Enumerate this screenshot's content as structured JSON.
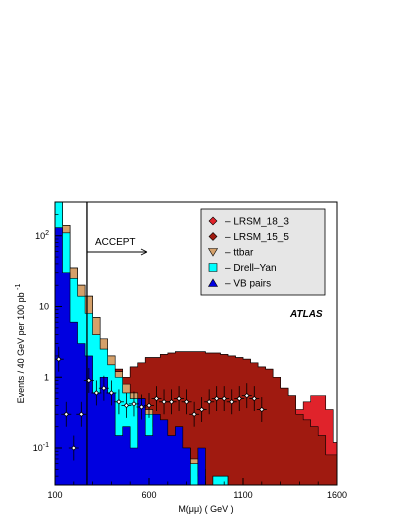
{
  "chart_data": {
    "type": "area",
    "xlabel": "M(μμ) ( GeV )",
    "ylabel": "Events / 40 GeV per 100 pb",
    "ylabel_superscript": "-1",
    "xlim": [
      100,
      1600
    ],
    "ylim": [
      0.03,
      300
    ],
    "yscale": "log",
    "x_ticks": [
      100,
      600,
      1100,
      1600
    ],
    "y_ticks": [
      {
        "value": 0.1,
        "base": "10",
        "exp": "-1"
      },
      {
        "value": 1,
        "base": "1",
        "exp": ""
      },
      {
        "value": 10,
        "base": "10",
        "exp": ""
      },
      {
        "value": 100,
        "base": "10",
        "exp": "2"
      }
    ],
    "bin_width": 40,
    "bin_edges_start": 100,
    "cut_line": {
      "x": 270,
      "label": "ACCEPT"
    },
    "experiment_label": "ATLAS",
    "legend": [
      {
        "label": "– LRSM_18_3",
        "marker": "diamond",
        "color": "#e0232b"
      },
      {
        "label": "– LRSM_15_5",
        "marker": "diamond",
        "color": "#a01a10"
      },
      {
        "label": "– ttbar",
        "marker": "triangle-down",
        "color": "#d4a06a"
      },
      {
        "label": "– Drell–Yan",
        "marker": "square",
        "color": "#00ffff"
      },
      {
        "label": "– VB pairs",
        "marker": "triangle-up",
        "color": "#0000e0"
      }
    ],
    "series": [
      {
        "name": "VB pairs",
        "color": "#0000e0",
        "values": [
          130,
          30,
          6,
          3,
          2,
          0.6,
          1,
          0.6,
          0.15,
          0.2,
          0.1,
          0.5,
          0.15,
          0.3,
          0.25,
          0.15,
          0.2,
          0.1,
          0.03,
          0.1,
          0.03,
          0.03,
          0.03,
          0.03,
          0.03,
          0.03,
          0.03,
          0.03,
          0.03,
          0.03,
          0.03,
          0.03,
          0.03,
          0.03,
          0.03,
          0.03,
          0.03,
          0.03
        ]
      },
      {
        "name": "Drell-Yan",
        "color": "#00ffff",
        "values": [
          300,
          110,
          25,
          14,
          8,
          4,
          2.5,
          1.5,
          1,
          0.6,
          0.5,
          0.4,
          0.3,
          0.2,
          0.15,
          0.1,
          0.1,
          0.1,
          0.06,
          0.04,
          0.03,
          0.04,
          0.04,
          0.03,
          0.03,
          0.03,
          0.03,
          0.03,
          0.03,
          0.03,
          0.03,
          0.03,
          0.03,
          0.03,
          0.03,
          0.03,
          0.03,
          0.03
        ]
      },
      {
        "name": "ttbar",
        "color": "#d4a06a",
        "values": [
          300,
          140,
          35,
          20,
          14,
          7,
          3.5,
          2,
          1.2,
          0.8,
          0.6,
          0.5,
          0.35,
          0.28,
          0.15,
          0.1,
          0.1,
          0.1,
          0.07,
          0.05,
          0.03,
          0.04,
          0.04,
          0.03,
          0.03,
          0.03,
          0.03,
          0.03,
          0.03,
          0.03,
          0.03,
          0.03,
          0.03,
          0.03,
          0.03,
          0.03,
          0.03,
          0.03
        ]
      },
      {
        "name": "LRSM_15_5",
        "color": "#a01a10",
        "values": [
          300,
          140,
          35,
          20,
          14,
          7,
          3.5,
          2,
          1.3,
          1,
          1.4,
          1.6,
          1.9,
          1.9,
          2.1,
          2.2,
          2.3,
          2.3,
          2.3,
          2.3,
          2.2,
          2.2,
          2.1,
          2,
          1.9,
          1.8,
          1.6,
          1.4,
          1.3,
          1.0,
          0.7,
          0.55,
          0.3,
          0.25,
          0.2,
          0.15,
          0.08,
          0.08
        ]
      },
      {
        "name": "LRSM_18_3",
        "color": "#e0232b",
        "values": [
          300,
          140,
          35,
          20,
          14,
          7,
          3.5,
          2,
          1.3,
          1,
          1.4,
          1.6,
          1.9,
          1.9,
          2.1,
          2.2,
          2.3,
          2.3,
          2.3,
          2.3,
          2.2,
          2.2,
          2.1,
          2,
          1.9,
          1.8,
          1.6,
          1.4,
          1.3,
          1.0,
          0.7,
          0.55,
          0.35,
          0.45,
          0.55,
          0.55,
          0.35,
          0.12
        ]
      }
    ],
    "signal_points": [
      {
        "x": 120,
        "y": 1.8
      },
      {
        "x": 160,
        "y": 0.3
      },
      {
        "x": 200,
        "y": 0.1
      },
      {
        "x": 240,
        "y": 0.3
      },
      {
        "x": 280,
        "y": 0.9
      },
      {
        "x": 320,
        "y": 0.6
      },
      {
        "x": 360,
        "y": 0.7
      },
      {
        "x": 400,
        "y": 0.6
      },
      {
        "x": 440,
        "y": 0.45
      },
      {
        "x": 480,
        "y": 0.4
      },
      {
        "x": 520,
        "y": 0.42
      },
      {
        "x": 560,
        "y": 0.38
      },
      {
        "x": 600,
        "y": 0.4
      },
      {
        "x": 640,
        "y": 0.5
      },
      {
        "x": 680,
        "y": 0.45
      },
      {
        "x": 720,
        "y": 0.45
      },
      {
        "x": 760,
        "y": 0.5
      },
      {
        "x": 800,
        "y": 0.45
      },
      {
        "x": 840,
        "y": 0.3
      },
      {
        "x": 880,
        "y": 0.35
      },
      {
        "x": 920,
        "y": 0.45
      },
      {
        "x": 960,
        "y": 0.5
      },
      {
        "x": 1000,
        "y": 0.5
      },
      {
        "x": 1040,
        "y": 0.45
      },
      {
        "x": 1080,
        "y": 0.5
      },
      {
        "x": 1120,
        "y": 0.55
      },
      {
        "x": 1160,
        "y": 0.5
      },
      {
        "x": 1200,
        "y": 0.35
      }
    ]
  }
}
